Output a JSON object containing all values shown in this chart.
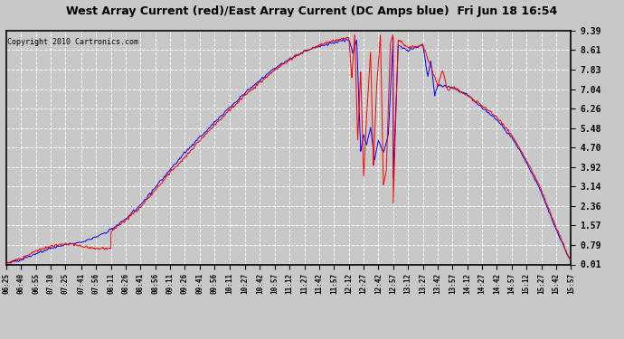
{
  "title": "West Array Current (red)/East Array Current (DC Amps blue)  Fri Jun 18 16:54",
  "copyright": "Copyright 2010 Cartronics.com",
  "bg_color": "#c8c8c8",
  "plot_bg_color": "#c8c8c8",
  "red_color": "#ff0000",
  "blue_color": "#0000ff",
  "ylim": [
    0.01,
    9.39
  ],
  "yticks": [
    9.39,
    8.61,
    7.83,
    7.04,
    6.26,
    5.48,
    4.7,
    3.92,
    3.14,
    2.36,
    1.57,
    0.79,
    0.01
  ],
  "xtick_labels": [
    "06:25",
    "06:40",
    "06:55",
    "07:10",
    "07:25",
    "07:41",
    "07:56",
    "08:11",
    "08:26",
    "08:41",
    "08:56",
    "09:11",
    "09:26",
    "09:41",
    "09:56",
    "10:11",
    "10:27",
    "10:42",
    "10:57",
    "11:12",
    "11:27",
    "11:42",
    "11:57",
    "12:12",
    "12:27",
    "12:42",
    "12:57",
    "13:12",
    "13:27",
    "13:42",
    "13:57",
    "14:12",
    "14:27",
    "14:42",
    "14:57",
    "15:12",
    "15:27",
    "15:42",
    "15:57"
  ],
  "grid_color": "#ffffff",
  "grid_linestyle": "--",
  "grid_linewidth": 0.7
}
